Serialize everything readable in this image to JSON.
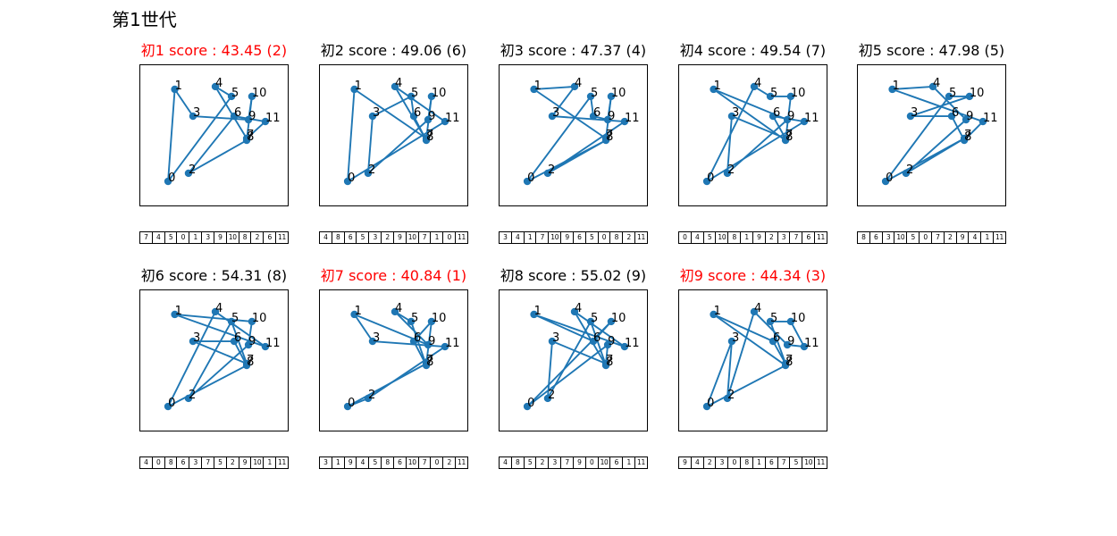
{
  "page_title": "第1世代",
  "colors": {
    "route": "#1f77b4",
    "title_default": "#000000",
    "title_highlight": "#ff0000"
  },
  "chart_data": {
    "type": "line",
    "xlim": [
      0,
      10
    ],
    "ylim": [
      0,
      10
    ],
    "grid": false,
    "cities": [
      {
        "label": "0",
        "x": 1.92,
        "y": 1.76
      },
      {
        "label": "1",
        "x": 2.37,
        "y": 8.24
      },
      {
        "label": "2",
        "x": 3.29,
        "y": 2.33
      },
      {
        "label": "3",
        "x": 3.59,
        "y": 6.35
      },
      {
        "label": "4",
        "x": 5.09,
        "y": 8.43
      },
      {
        "label": "5",
        "x": 6.17,
        "y": 7.74
      },
      {
        "label": "6",
        "x": 6.35,
        "y": 6.35
      },
      {
        "label": "7",
        "x": 7.19,
        "y": 4.78
      },
      {
        "label": "8",
        "x": 7.19,
        "y": 4.65
      },
      {
        "label": "9",
        "x": 7.31,
        "y": 6.1
      },
      {
        "label": "10",
        "x": 7.54,
        "y": 7.74
      },
      {
        "label": "11",
        "x": 8.44,
        "y": 5.97
      }
    ],
    "panels": [
      {
        "title": "初1 score : 43.45 (2)",
        "score": 43.45,
        "rank": 2,
        "highlight": true,
        "tour": [
          7,
          4,
          5,
          0,
          1,
          3,
          9,
          10,
          8,
          2,
          6,
          11
        ]
      },
      {
        "title": "初2 score : 49.06 (6)",
        "score": 49.06,
        "rank": 6,
        "highlight": false,
        "tour": [
          4,
          8,
          6,
          5,
          3,
          2,
          9,
          10,
          7,
          1,
          0,
          11
        ]
      },
      {
        "title": "初3 score : 47.37 (4)",
        "score": 47.37,
        "rank": 4,
        "highlight": false,
        "tour": [
          3,
          4,
          1,
          7,
          10,
          9,
          6,
          5,
          0,
          8,
          2,
          11
        ]
      },
      {
        "title": "初4 score : 49.54 (7)",
        "score": 49.54,
        "rank": 7,
        "highlight": false,
        "tour": [
          0,
          4,
          5,
          10,
          8,
          1,
          9,
          2,
          3,
          7,
          6,
          11
        ]
      },
      {
        "title": "初5 score : 47.98 (5)",
        "score": 47.98,
        "rank": 5,
        "highlight": false,
        "tour": [
          8,
          6,
          3,
          10,
          5,
          0,
          7,
          2,
          9,
          4,
          1,
          11
        ]
      },
      {
        "title": "初6 score : 54.31 (8)",
        "score": 54.31,
        "rank": 8,
        "highlight": false,
        "tour": [
          4,
          0,
          8,
          6,
          3,
          7,
          5,
          2,
          9,
          10,
          1,
          11
        ]
      },
      {
        "title": "初7 score : 40.84 (1)",
        "score": 40.84,
        "rank": 1,
        "highlight": true,
        "tour": [
          3,
          1,
          9,
          4,
          5,
          8,
          6,
          10,
          7,
          0,
          2,
          11
        ]
      },
      {
        "title": "初8 score : 55.02 (9)",
        "score": 55.02,
        "rank": 9,
        "highlight": false,
        "tour": [
          4,
          8,
          5,
          2,
          3,
          7,
          9,
          0,
          10,
          6,
          1,
          11
        ]
      },
      {
        "title": "初9 score : 44.34 (3)",
        "score": 44.34,
        "rank": 3,
        "highlight": true,
        "tour": [
          9,
          4,
          2,
          3,
          0,
          8,
          1,
          6,
          7,
          5,
          10,
          11
        ]
      }
    ]
  }
}
